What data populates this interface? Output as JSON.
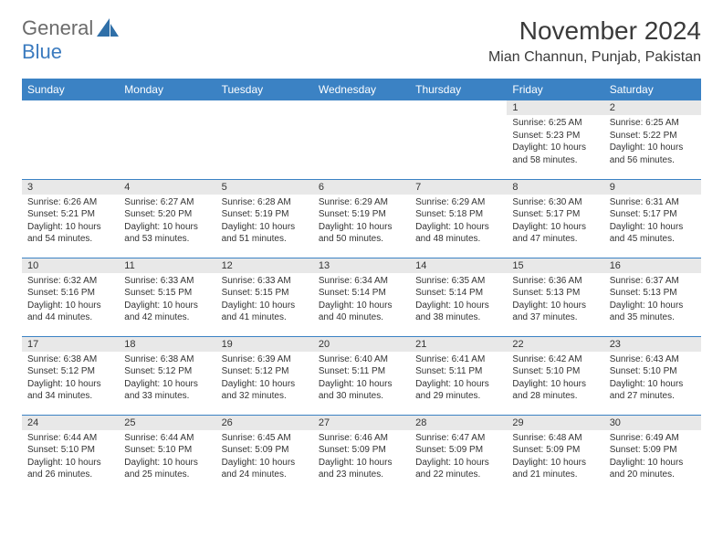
{
  "logo": {
    "part1": "General",
    "part2": "Blue"
  },
  "title": "November 2024",
  "location": "Mian Channun, Punjab, Pakistan",
  "colors": {
    "header_bg": "#3b82c4",
    "header_text": "#ffffff",
    "daynum_bg": "#e8e8e8",
    "border": "#3b82c4",
    "logo_gray": "#6b6b6b",
    "logo_blue": "#3b7bbf"
  },
  "day_headers": [
    "Sunday",
    "Monday",
    "Tuesday",
    "Wednesday",
    "Thursday",
    "Friday",
    "Saturday"
  ],
  "weeks": [
    [
      {
        "n": "",
        "sr": "",
        "ss": "",
        "dl": ""
      },
      {
        "n": "",
        "sr": "",
        "ss": "",
        "dl": ""
      },
      {
        "n": "",
        "sr": "",
        "ss": "",
        "dl": ""
      },
      {
        "n": "",
        "sr": "",
        "ss": "",
        "dl": ""
      },
      {
        "n": "",
        "sr": "",
        "ss": "",
        "dl": ""
      },
      {
        "n": "1",
        "sr": "Sunrise: 6:25 AM",
        "ss": "Sunset: 5:23 PM",
        "dl": "Daylight: 10 hours and 58 minutes."
      },
      {
        "n": "2",
        "sr": "Sunrise: 6:25 AM",
        "ss": "Sunset: 5:22 PM",
        "dl": "Daylight: 10 hours and 56 minutes."
      }
    ],
    [
      {
        "n": "3",
        "sr": "Sunrise: 6:26 AM",
        "ss": "Sunset: 5:21 PM",
        "dl": "Daylight: 10 hours and 54 minutes."
      },
      {
        "n": "4",
        "sr": "Sunrise: 6:27 AM",
        "ss": "Sunset: 5:20 PM",
        "dl": "Daylight: 10 hours and 53 minutes."
      },
      {
        "n": "5",
        "sr": "Sunrise: 6:28 AM",
        "ss": "Sunset: 5:19 PM",
        "dl": "Daylight: 10 hours and 51 minutes."
      },
      {
        "n": "6",
        "sr": "Sunrise: 6:29 AM",
        "ss": "Sunset: 5:19 PM",
        "dl": "Daylight: 10 hours and 50 minutes."
      },
      {
        "n": "7",
        "sr": "Sunrise: 6:29 AM",
        "ss": "Sunset: 5:18 PM",
        "dl": "Daylight: 10 hours and 48 minutes."
      },
      {
        "n": "8",
        "sr": "Sunrise: 6:30 AM",
        "ss": "Sunset: 5:17 PM",
        "dl": "Daylight: 10 hours and 47 minutes."
      },
      {
        "n": "9",
        "sr": "Sunrise: 6:31 AM",
        "ss": "Sunset: 5:17 PM",
        "dl": "Daylight: 10 hours and 45 minutes."
      }
    ],
    [
      {
        "n": "10",
        "sr": "Sunrise: 6:32 AM",
        "ss": "Sunset: 5:16 PM",
        "dl": "Daylight: 10 hours and 44 minutes."
      },
      {
        "n": "11",
        "sr": "Sunrise: 6:33 AM",
        "ss": "Sunset: 5:15 PM",
        "dl": "Daylight: 10 hours and 42 minutes."
      },
      {
        "n": "12",
        "sr": "Sunrise: 6:33 AM",
        "ss": "Sunset: 5:15 PM",
        "dl": "Daylight: 10 hours and 41 minutes."
      },
      {
        "n": "13",
        "sr": "Sunrise: 6:34 AM",
        "ss": "Sunset: 5:14 PM",
        "dl": "Daylight: 10 hours and 40 minutes."
      },
      {
        "n": "14",
        "sr": "Sunrise: 6:35 AM",
        "ss": "Sunset: 5:14 PM",
        "dl": "Daylight: 10 hours and 38 minutes."
      },
      {
        "n": "15",
        "sr": "Sunrise: 6:36 AM",
        "ss": "Sunset: 5:13 PM",
        "dl": "Daylight: 10 hours and 37 minutes."
      },
      {
        "n": "16",
        "sr": "Sunrise: 6:37 AM",
        "ss": "Sunset: 5:13 PM",
        "dl": "Daylight: 10 hours and 35 minutes."
      }
    ],
    [
      {
        "n": "17",
        "sr": "Sunrise: 6:38 AM",
        "ss": "Sunset: 5:12 PM",
        "dl": "Daylight: 10 hours and 34 minutes."
      },
      {
        "n": "18",
        "sr": "Sunrise: 6:38 AM",
        "ss": "Sunset: 5:12 PM",
        "dl": "Daylight: 10 hours and 33 minutes."
      },
      {
        "n": "19",
        "sr": "Sunrise: 6:39 AM",
        "ss": "Sunset: 5:12 PM",
        "dl": "Daylight: 10 hours and 32 minutes."
      },
      {
        "n": "20",
        "sr": "Sunrise: 6:40 AM",
        "ss": "Sunset: 5:11 PM",
        "dl": "Daylight: 10 hours and 30 minutes."
      },
      {
        "n": "21",
        "sr": "Sunrise: 6:41 AM",
        "ss": "Sunset: 5:11 PM",
        "dl": "Daylight: 10 hours and 29 minutes."
      },
      {
        "n": "22",
        "sr": "Sunrise: 6:42 AM",
        "ss": "Sunset: 5:10 PM",
        "dl": "Daylight: 10 hours and 28 minutes."
      },
      {
        "n": "23",
        "sr": "Sunrise: 6:43 AM",
        "ss": "Sunset: 5:10 PM",
        "dl": "Daylight: 10 hours and 27 minutes."
      }
    ],
    [
      {
        "n": "24",
        "sr": "Sunrise: 6:44 AM",
        "ss": "Sunset: 5:10 PM",
        "dl": "Daylight: 10 hours and 26 minutes."
      },
      {
        "n": "25",
        "sr": "Sunrise: 6:44 AM",
        "ss": "Sunset: 5:10 PM",
        "dl": "Daylight: 10 hours and 25 minutes."
      },
      {
        "n": "26",
        "sr": "Sunrise: 6:45 AM",
        "ss": "Sunset: 5:09 PM",
        "dl": "Daylight: 10 hours and 24 minutes."
      },
      {
        "n": "27",
        "sr": "Sunrise: 6:46 AM",
        "ss": "Sunset: 5:09 PM",
        "dl": "Daylight: 10 hours and 23 minutes."
      },
      {
        "n": "28",
        "sr": "Sunrise: 6:47 AM",
        "ss": "Sunset: 5:09 PM",
        "dl": "Daylight: 10 hours and 22 minutes."
      },
      {
        "n": "29",
        "sr": "Sunrise: 6:48 AM",
        "ss": "Sunset: 5:09 PM",
        "dl": "Daylight: 10 hours and 21 minutes."
      },
      {
        "n": "30",
        "sr": "Sunrise: 6:49 AM",
        "ss": "Sunset: 5:09 PM",
        "dl": "Daylight: 10 hours and 20 minutes."
      }
    ]
  ]
}
